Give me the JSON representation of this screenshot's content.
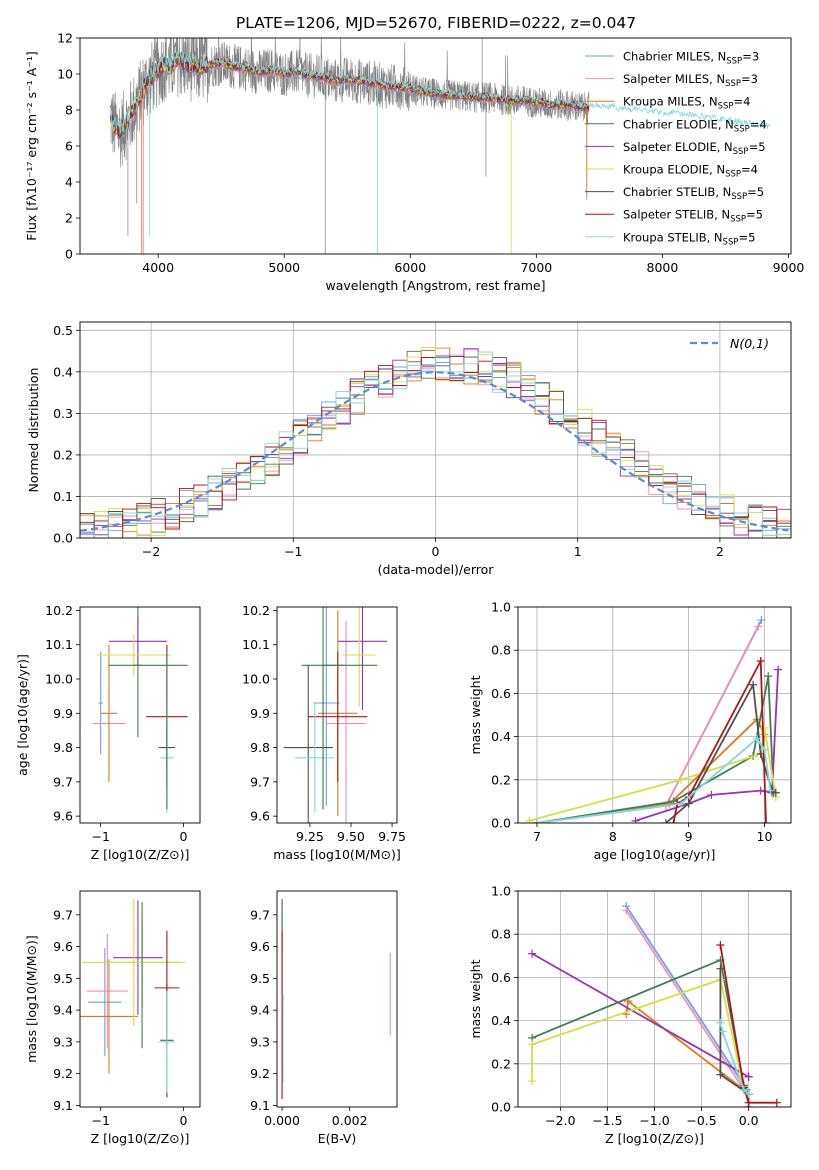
{
  "figure": {
    "title": "PLATE=1206, MJD=52670, FIBERID=0222, z=0.047"
  },
  "colors": {
    "series": [
      "#6f9fe6",
      "#f08fb5",
      "#e07820",
      "#3f7f50",
      "#9b30b0",
      "#d4e040",
      "#505050",
      "#b01515",
      "#80d8e0"
    ],
    "grid": "#b0b0b0",
    "observed_spectrum": "#808080",
    "gaussian": "#5a8ad8"
  },
  "chart_data": [
    {
      "id": "spectrum",
      "type": "line",
      "xlabel": "wavelength [Angstrom, rest frame]",
      "ylabel": "Flux [fλ10⁻¹⁷ erg cm⁻² s⁻¹ A⁻¹]",
      "xlim": [
        3380,
        9020
      ],
      "ylim": [
        0,
        12
      ],
      "xticks": [
        4000,
        5000,
        6000,
        7000,
        8000,
        9000
      ],
      "yticks": [
        0,
        2,
        4,
        6,
        8,
        10,
        12
      ],
      "legend_position": "upper-right",
      "model_anchors_x": [
        3620,
        3660,
        3700,
        3760,
        3800,
        3860,
        3900,
        3950,
        4000,
        4050,
        4100,
        4150,
        4200,
        4300,
        4400,
        4500,
        4600,
        4700,
        4800,
        4900,
        5000,
        5100,
        5200,
        5300,
        5400,
        5500,
        5600,
        5700,
        5800,
        5900,
        6000,
        6100,
        6200,
        6300,
        6400,
        6500,
        6600,
        6700,
        6800,
        6900,
        7000,
        7100,
        7200,
        7300,
        7400,
        7500,
        7600,
        7700,
        7800,
        7900,
        8000,
        8100,
        8200,
        8300,
        8400,
        8500,
        8600,
        8700,
        8800,
        8900
      ],
      "model_anchors_y": [
        7.6,
        7.0,
        6.8,
        7.4,
        7.9,
        8.8,
        9.4,
        9.8,
        10.2,
        10.5,
        10.4,
        10.8,
        10.6,
        10.4,
        10.5,
        10.6,
        10.4,
        10.3,
        10.1,
        10.2,
        10.0,
        10.1,
        9.9,
        9.8,
        9.6,
        9.7,
        9.6,
        9.5,
        9.3,
        9.3,
        9.2,
        9.0,
        8.9,
        8.8,
        8.8,
        8.7,
        8.7,
        8.6,
        8.5,
        8.5,
        8.4,
        8.3,
        8.3,
        8.2,
        8.1,
        8.1,
        8.0,
        7.9,
        7.9,
        7.8,
        7.7,
        7.7,
        7.6,
        7.5,
        7.4,
        7.3,
        7.2,
        7.1,
        7.0,
        6.9
      ],
      "series": [
        {
          "name": "Chabrier MILES",
          "nssp": "3"
        },
        {
          "name": "Salpeter MILES",
          "nssp": "3"
        },
        {
          "name": "Kroupa MILES",
          "nssp": "4"
        },
        {
          "name": "Chabrier ELODIE",
          "nssp": "4"
        },
        {
          "name": "Salpeter ELODIE",
          "nssp": "5"
        },
        {
          "name": "Kroupa ELODIE",
          "nssp": "4"
        },
        {
          "name": "Chabrier STELIB",
          "nssp": "5"
        },
        {
          "name": "Salpeter STELIB",
          "nssp": "5"
        },
        {
          "name": "Kroupa STELIB",
          "nssp": "5"
        }
      ]
    },
    {
      "id": "residuals",
      "type": "step",
      "xlabel": "(data-model)/error",
      "ylabel": "Normed distribution",
      "xlim": [
        -2.5,
        2.5
      ],
      "ylim": [
        0,
        0.52
      ],
      "xticks": [
        -2,
        -1,
        0,
        1,
        2
      ],
      "yticks": [
        0.0,
        0.1,
        0.2,
        0.3,
        0.4,
        0.5
      ],
      "bin_width": 0.1,
      "grid": true,
      "legend_position": "upper-right",
      "gaussian_label": "N(0,1)"
    },
    {
      "id": "age_vs_Z",
      "type": "errorbar",
      "xlabel": "Z [log10(Z/Z⊙)]",
      "ylabel": "age  [log10(age/yr)]",
      "xlim": [
        -1.25,
        0.2
      ],
      "ylim": [
        9.58,
        10.21
      ],
      "xticks": [
        -1,
        0
      ],
      "yticks": [
        9.6,
        9.7,
        9.8,
        9.9,
        10.0,
        10.1,
        10.2
      ],
      "points": [
        {
          "x": -1.0,
          "xerr": 0.03,
          "y": 9.93,
          "yerr": 0.15
        },
        {
          "x": -0.9,
          "xerr": 0.2,
          "y": 9.87,
          "yerr": 0.12
        },
        {
          "x": -0.9,
          "xerr": 0.1,
          "y": 9.9,
          "yerr": 0.2
        },
        {
          "x": -0.55,
          "xerr": 0.05,
          "y": 10.04,
          "yerr": 0.21
        },
        {
          "x": -0.55,
          "xerr": 0.35,
          "y": 10.11,
          "yerr": 0.07
        },
        {
          "x": -0.6,
          "xerr": 0.45,
          "y": 10.07,
          "yerr": 0.06
        },
        {
          "x": -0.2,
          "xerr": 0.1,
          "y": 9.8,
          "yerr": 0.06
        },
        {
          "x": -0.2,
          "xerr": 0.25,
          "y": 9.89,
          "yerr": 0.21
        },
        {
          "x": -0.2,
          "xerr": 0.08,
          "y": 9.77,
          "yerr": 0.16
        }
      ],
      "extra_segments": [
        {
          "color_index": 3,
          "x1": -0.9,
          "x2": 0.05,
          "y1": 10.04,
          "y2": 10.04
        },
        {
          "color_index": 3,
          "x1": -0.2,
          "x2": -0.2,
          "y1": 9.62,
          "y2": 10.08
        }
      ]
    },
    {
      "id": "age_vs_mass",
      "type": "errorbar",
      "xlabel": "mass [log10(M/M⊙)]",
      "ylabel": "",
      "xlim": [
        9.05,
        9.78
      ],
      "ylim": [
        9.58,
        10.21
      ],
      "xticks": [
        9.25,
        9.5,
        9.75
      ],
      "yticks": [
        9.6,
        9.7,
        9.8,
        9.9,
        10.0,
        10.1,
        10.2
      ],
      "points": [
        {
          "x": 9.35,
          "xerr": 0.08,
          "y": 9.93,
          "yerr": 0.3
        },
        {
          "x": 9.47,
          "xerr": 0.12,
          "y": 9.87,
          "yerr": 0.3
        },
        {
          "x": 9.42,
          "xerr": 0.12,
          "y": 9.9,
          "yerr": 0.3
        },
        {
          "x": 9.33,
          "xerr": 0.13,
          "y": 10.04,
          "yerr": 0.42
        },
        {
          "x": 9.57,
          "xerr": 0.15,
          "y": 10.11,
          "yerr": 0.2
        },
        {
          "x": 9.55,
          "xerr": 0.1,
          "y": 10.07,
          "yerr": 0.15
        },
        {
          "x": 9.24,
          "xerr": 0.15,
          "y": 9.8,
          "yerr": 0.24
        },
        {
          "x": 9.42,
          "xerr": 0.18,
          "y": 9.89,
          "yerr": 0.19
        },
        {
          "x": 9.28,
          "xerr": 0.12,
          "y": 9.77,
          "yerr": 0.16
        }
      ],
      "extra_segments": [
        {
          "color_index": 3,
          "x1": 9.33,
          "x2": 9.66,
          "y1": 10.04,
          "y2": 10.04
        },
        {
          "color_index": 3,
          "x1": 9.33,
          "x2": 9.33,
          "y1": 9.62,
          "y2": 10.04
        }
      ]
    },
    {
      "id": "weight_vs_age",
      "type": "line",
      "xlabel": "age  [log10(age/yr)]",
      "ylabel": "mass weight",
      "xlim": [
        6.75,
        10.35
      ],
      "ylim": [
        0,
        1.0
      ],
      "xticks": [
        7,
        8,
        9,
        10
      ],
      "yticks": [
        0.0,
        0.2,
        0.4,
        0.6,
        0.8,
        1.0
      ],
      "grid": true,
      "series": [
        [
          [
            7.0,
            0.0
          ],
          [
            8.7,
            0.08
          ],
          [
            9.96,
            0.94
          ]
        ],
        [
          [
            7.0,
            0.0
          ],
          [
            8.7,
            0.08
          ],
          [
            9.92,
            0.91
          ]
        ],
        [
          [
            7.0,
            0.0
          ],
          [
            8.75,
            0.09
          ],
          [
            9.9,
            0.48
          ],
          [
            10.0,
            0.41
          ]
        ],
        [
          [
            7.0,
            0.0
          ],
          [
            8.8,
            0.1
          ],
          [
            9.85,
            0.31
          ],
          [
            10.05,
            0.68
          ],
          [
            10.12,
            0.14
          ]
        ],
        [
          [
            8.3,
            0.01
          ],
          [
            9.0,
            0.09
          ],
          [
            9.3,
            0.13
          ],
          [
            9.95,
            0.15
          ],
          [
            10.1,
            0.14
          ],
          [
            10.18,
            0.71
          ]
        ],
        [
          [
            6.9,
            0.01
          ],
          [
            8.9,
            0.2
          ],
          [
            9.95,
            0.32
          ],
          [
            10.0,
            0.44
          ],
          [
            10.15,
            0.12
          ]
        ],
        [
          [
            8.7,
            0.0
          ],
          [
            9.0,
            0.09
          ],
          [
            9.85,
            0.64
          ],
          [
            9.95,
            0.32
          ],
          [
            10.1,
            0.15
          ],
          [
            10.15,
            0.14
          ]
        ],
        [
          [
            8.8,
            0.0
          ],
          [
            8.85,
            0.09
          ],
          [
            9.0,
            0.12
          ],
          [
            9.95,
            0.75
          ],
          [
            10.02,
            0.0
          ]
        ],
        [
          [
            7.0,
            0.0
          ],
          [
            8.9,
            0.09
          ],
          [
            9.9,
            0.39
          ],
          [
            10.0,
            0.34
          ],
          [
            10.08,
            0.15
          ]
        ]
      ]
    },
    {
      "id": "mass_vs_Z",
      "type": "errorbar",
      "xlabel": "Z [log10(Z/Z⊙)]",
      "ylabel": "mass [log10(M/M⊙)]",
      "xlim": [
        -1.25,
        0.2
      ],
      "ylim": [
        9.095,
        9.775
      ],
      "xticks": [
        -1,
        0
      ],
      "yticks": [
        9.1,
        9.2,
        9.3,
        9.4,
        9.5,
        9.6,
        9.7
      ],
      "points": [
        {
          "x": -0.95,
          "xerr": 0.2,
          "y": 9.425,
          "yerr": 0.17
        },
        {
          "x": -0.92,
          "xerr": 0.25,
          "y": 9.46,
          "yerr": 0.18
        },
        {
          "x": -0.9,
          "xerr": 0.35,
          "y": 9.38,
          "yerr": 0.18
        },
        {
          "x": -0.5,
          "xerr": 0.45,
          "y": 9.55,
          "yerr": 0.14
        },
        {
          "x": -0.55,
          "xerr": 0.3,
          "y": 9.565,
          "yerr": 0.18
        },
        {
          "x": -0.6,
          "xerr": 0.62,
          "y": 9.55,
          "yerr": 0.2
        },
        {
          "x": -0.2,
          "xerr": 0.08,
          "y": 9.305,
          "yerr": 0.18
        },
        {
          "x": -0.2,
          "xerr": 0.15,
          "y": 9.47,
          "yerr": 0.18
        },
        {
          "x": -0.2,
          "xerr": 0.1,
          "y": 9.3,
          "yerr": 0.16
        }
      ],
      "extra_segments": [
        {
          "color_index": 3,
          "x1": -0.5,
          "x2": -0.5,
          "y1": 9.28,
          "y2": 9.74
        }
      ]
    },
    {
      "id": "mass_vs_ebv",
      "type": "errorbar",
      "xlabel": "E(B-V)",
      "ylabel": "",
      "xlim": [
        -0.00015,
        0.0034
      ],
      "ylim": [
        9.095,
        9.775
      ],
      "xticks_labels": [
        "0.000",
        "0.002"
      ],
      "xticks": [
        0,
        0.002
      ],
      "yticks": [
        9.1,
        9.2,
        9.3,
        9.4,
        9.5,
        9.6,
        9.7
      ],
      "segments": [
        {
          "color_index": 4,
          "x": 0.0,
          "y1": 9.6,
          "y2": 9.75
        },
        {
          "color_index": 3,
          "x": 0.0,
          "y1": 9.45,
          "y2": 9.75
        },
        {
          "color_index": 7,
          "x": 0.0,
          "y1": 9.12,
          "y2": 9.65
        },
        {
          "color_index": 8,
          "x": 3e-05,
          "y1": 9.17,
          "y2": 9.45
        },
        {
          "color_index": 1,
          "x": 0.0032,
          "y1": 9.32,
          "y2": 9.58
        }
      ]
    },
    {
      "id": "weight_vs_Z",
      "type": "line",
      "xlabel": "Z [log10(Z/Z⊙)]",
      "ylabel": "mass weight",
      "xlim": [
        -2.45,
        0.45
      ],
      "ylim": [
        0,
        1.0
      ],
      "xticks": [
        -2.0,
        -1.5,
        -1.0,
        -0.5,
        0.0
      ],
      "yticks": [
        0.0,
        0.2,
        0.4,
        0.6,
        0.8,
        1.0
      ],
      "grid": true,
      "series": [
        [
          [
            -1.3,
            0.93
          ],
          [
            -0.02,
            0.08
          ],
          [
            0.0,
            0.06
          ]
        ],
        [
          [
            -1.3,
            0.91
          ],
          [
            -0.05,
            0.08
          ],
          [
            0.0,
            0.06
          ]
        ],
        [
          [
            -1.3,
            0.43
          ],
          [
            -1.28,
            0.49
          ],
          [
            -0.05,
            0.08
          ],
          [
            0.0,
            0.06
          ]
        ],
        [
          [
            -2.3,
            0.32
          ],
          [
            -0.3,
            0.68
          ],
          [
            -0.05,
            0.1
          ],
          [
            0.0,
            0.06
          ]
        ],
        [
          [
            -2.3,
            0.71
          ],
          [
            0.0,
            0.14
          ],
          [
            0.0,
            0.14
          ]
        ],
        [
          [
            -2.3,
            0.12
          ],
          [
            -2.3,
            0.29
          ],
          [
            -0.3,
            0.59
          ],
          [
            -0.05,
            0.08
          ],
          [
            0.0,
            0.06
          ]
        ],
        [
          [
            -0.3,
            0.64
          ],
          [
            -0.3,
            0.15
          ],
          [
            0.0,
            0.06
          ],
          [
            0.0,
            0.0
          ]
        ],
        [
          [
            -0.3,
            0.75
          ],
          [
            -0.05,
            0.09
          ],
          [
            0.0,
            0.02
          ],
          [
            0.3,
            0.02
          ]
        ],
        [
          [
            -0.3,
            0.39
          ],
          [
            -0.28,
            0.35
          ],
          [
            -0.05,
            0.08
          ],
          [
            0.0,
            0.06
          ]
        ]
      ]
    }
  ]
}
